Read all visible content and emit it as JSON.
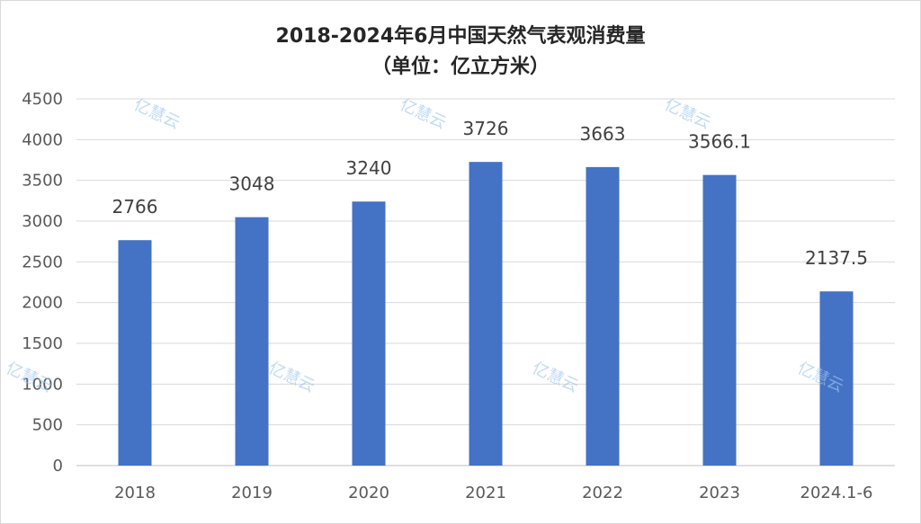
{
  "chart_data": {
    "type": "bar",
    "title": "2018-2024年6月中国天然气表观消费量",
    "subtitle": "（单位：亿立方米）",
    "categories": [
      "2018",
      "2019",
      "2020",
      "2021",
      "2022",
      "2023",
      "2024.1-6"
    ],
    "values": [
      2766,
      3048,
      3240,
      3726,
      3663,
      3566.1,
      2137.5
    ],
    "data_labels": [
      "2766",
      "3048",
      "3240",
      "3726",
      "3663",
      "3566.1",
      "2137.5"
    ],
    "y_ticks": [
      "0",
      "500",
      "1000",
      "1500",
      "2000",
      "2500",
      "3000",
      "3500",
      "4000",
      "4500"
    ],
    "ylim": [
      0,
      4500
    ],
    "xlabel": "",
    "ylabel": "",
    "grid": true,
    "legend": "none",
    "bar_color": "#4472c4"
  },
  "watermark": "亿慧云"
}
